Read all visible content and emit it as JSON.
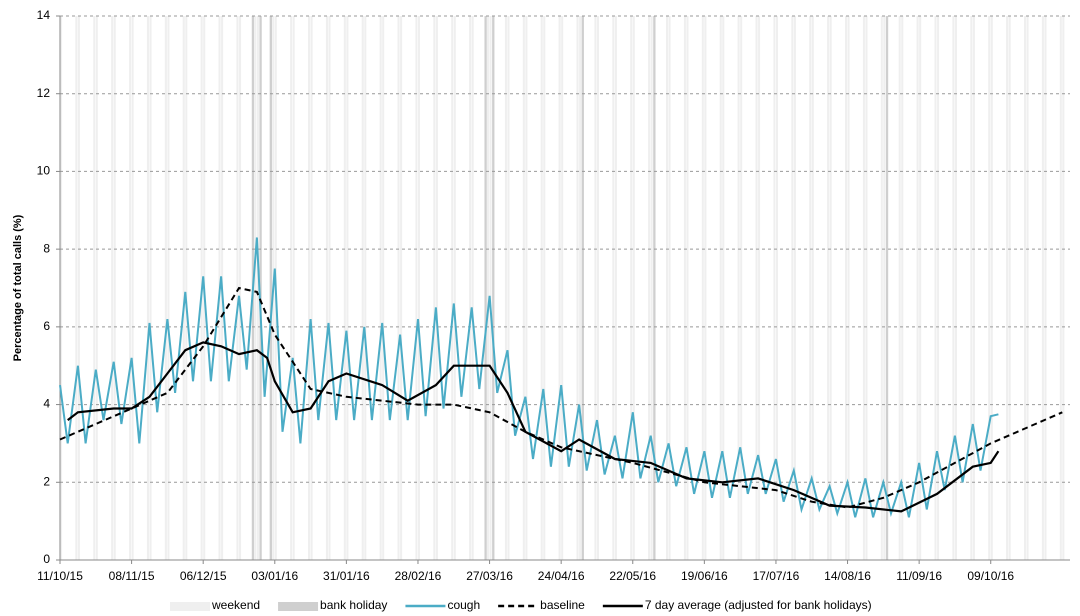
{
  "chart_data": {
    "type": "line",
    "ylabel": "Percentage of total calls (%)",
    "ylim": [
      0,
      14
    ],
    "yticks": [
      0,
      2,
      4,
      6,
      8,
      10,
      12,
      14
    ],
    "grid": true,
    "xlim": [
      "11/10/15",
      "09/11/16"
    ],
    "xticks": [
      "11/10/15",
      "08/11/15",
      "06/12/15",
      "03/01/16",
      "31/01/16",
      "28/02/16",
      "27/03/16",
      "24/04/16",
      "22/05/16",
      "19/06/16",
      "17/07/16",
      "14/08/16",
      "11/09/16",
      "09/10/16"
    ],
    "shading": [
      {
        "name": "weekend",
        "color": "#efefef"
      },
      {
        "name": "bank holiday",
        "color": "#cfcfcf",
        "dates": [
          "25/12/15",
          "28/12/15",
          "01/01/16",
          "25/03/16",
          "28/03/16",
          "02/05/16",
          "30/05/16",
          "29/08/16"
        ]
      }
    ],
    "series": [
      {
        "name": "cough",
        "color": "#4bacc6",
        "dash": false,
        "x": [
          "11/10/15",
          "14/10/15",
          "18/10/15",
          "21/10/15",
          "25/10/15",
          "28/10/15",
          "01/11/15",
          "04/11/15",
          "08/11/15",
          "11/11/15",
          "15/11/15",
          "18/11/15",
          "22/11/15",
          "25/11/15",
          "29/11/15",
          "02/12/15",
          "06/12/15",
          "09/12/15",
          "13/12/15",
          "16/12/15",
          "20/12/15",
          "23/12/15",
          "27/12/15",
          "30/12/15",
          "03/01/16",
          "06/01/16",
          "10/01/16",
          "13/01/16",
          "17/01/16",
          "20/01/16",
          "24/01/16",
          "27/01/16",
          "31/01/16",
          "03/02/16",
          "07/02/16",
          "10/02/16",
          "14/02/16",
          "17/02/16",
          "21/02/16",
          "24/02/16",
          "28/02/16",
          "02/03/16",
          "06/03/16",
          "09/03/16",
          "13/03/16",
          "16/03/16",
          "20/03/16",
          "23/03/16",
          "27/03/16",
          "30/03/16",
          "03/04/16",
          "06/04/16",
          "10/04/16",
          "13/04/16",
          "17/04/16",
          "20/04/16",
          "24/04/16",
          "27/04/16",
          "01/05/16",
          "04/05/16",
          "08/05/16",
          "11/05/16",
          "15/05/16",
          "18/05/16",
          "22/05/16",
          "25/05/16",
          "29/05/16",
          "01/06/16",
          "05/06/16",
          "08/06/16",
          "12/06/16",
          "15/06/16",
          "19/06/16",
          "22/06/16",
          "26/06/16",
          "29/06/16",
          "03/07/16",
          "06/07/16",
          "10/07/16",
          "13/07/16",
          "17/07/16",
          "20/07/16",
          "24/07/16",
          "27/07/16",
          "31/07/16",
          "03/08/16",
          "07/08/16",
          "10/08/16",
          "14/08/16",
          "17/08/16",
          "21/08/16",
          "24/08/16",
          "28/08/16",
          "31/08/16",
          "04/09/16",
          "07/09/16",
          "11/09/16",
          "14/09/16",
          "18/09/16",
          "21/09/16",
          "25/09/16",
          "28/09/16",
          "02/10/16",
          "05/10/16",
          "09/10/16",
          "12/10/16"
        ],
        "values": [
          4.5,
          3.0,
          5.0,
          3.0,
          4.9,
          3.6,
          5.1,
          3.5,
          5.2,
          3.0,
          6.1,
          3.8,
          6.2,
          4.3,
          6.9,
          4.6,
          7.3,
          4.6,
          7.3,
          4.6,
          6.8,
          4.9,
          8.3,
          4.2,
          7.5,
          3.3,
          5.2,
          3.0,
          6.2,
          3.6,
          6.1,
          3.6,
          5.9,
          3.6,
          6.0,
          3.6,
          6.1,
          3.6,
          5.8,
          3.6,
          6.2,
          3.7,
          6.5,
          3.9,
          6.6,
          4.2,
          6.5,
          4.4,
          6.8,
          4.3,
          5.4,
          3.2,
          4.2,
          2.6,
          4.4,
          2.4,
          4.5,
          2.4,
          4.0,
          2.3,
          3.6,
          2.2,
          3.2,
          2.1,
          3.8,
          2.1,
          3.2,
          2.0,
          3.0,
          1.9,
          2.9,
          1.7,
          2.8,
          1.6,
          2.8,
          1.6,
          2.9,
          1.7,
          2.7,
          1.7,
          2.6,
          1.5,
          2.3,
          1.3,
          2.1,
          1.3,
          1.9,
          1.2,
          2.0,
          1.1,
          2.1,
          1.1,
          2.0,
          1.2,
          2.0,
          1.1,
          2.5,
          1.3,
          2.8,
          1.8,
          3.2,
          2.0,
          3.5,
          2.3,
          3.7,
          3.75
        ]
      },
      {
        "name": "baseline",
        "color": "#000000",
        "dash": true,
        "x": [
          "11/10/15",
          "08/11/15",
          "22/11/15",
          "06/12/15",
          "20/12/15",
          "27/12/15",
          "03/01/16",
          "17/01/16",
          "31/01/16",
          "28/02/16",
          "13/03/16",
          "27/03/16",
          "10/04/16",
          "24/04/16",
          "22/05/16",
          "19/06/16",
          "17/07/16",
          "31/07/16",
          "14/08/16",
          "28/08/16",
          "11/09/16",
          "09/10/16",
          "06/11/16"
        ],
        "values": [
          3.1,
          3.9,
          4.3,
          5.5,
          7.0,
          6.9,
          5.8,
          4.4,
          4.2,
          4.0,
          4.0,
          3.8,
          3.3,
          2.9,
          2.5,
          2.0,
          1.8,
          1.5,
          1.35,
          1.6,
          2.0,
          3.0,
          3.8
        ]
      },
      {
        "name": "7 day average (adjusted for bank holidays)",
        "color": "#000000",
        "dash": false,
        "x": [
          "14/10/15",
          "18/10/15",
          "01/11/15",
          "08/11/15",
          "15/11/15",
          "22/11/15",
          "29/11/15",
          "06/12/15",
          "13/12/15",
          "20/12/15",
          "27/12/15",
          "31/12/15",
          "03/01/16",
          "10/01/16",
          "17/01/16",
          "24/01/16",
          "31/01/16",
          "14/02/16",
          "24/02/16",
          "06/03/16",
          "13/03/16",
          "20/03/16",
          "27/03/16",
          "03/04/16",
          "10/04/16",
          "24/04/16",
          "01/05/16",
          "15/05/16",
          "29/05/16",
          "12/06/16",
          "26/06/16",
          "10/07/16",
          "24/07/16",
          "07/08/16",
          "21/08/16",
          "04/09/16",
          "18/09/16",
          "02/10/16",
          "09/10/16",
          "12/10/16"
        ],
        "values": [
          3.6,
          3.8,
          3.9,
          3.9,
          4.2,
          4.8,
          5.4,
          5.6,
          5.5,
          5.3,
          5.4,
          5.2,
          4.6,
          3.8,
          3.9,
          4.6,
          4.8,
          4.5,
          4.1,
          4.5,
          5.0,
          5.0,
          5.0,
          4.3,
          3.3,
          2.8,
          3.1,
          2.6,
          2.5,
          2.1,
          2.0,
          2.1,
          1.8,
          1.4,
          1.35,
          1.25,
          1.7,
          2.4,
          2.5,
          2.8
        ]
      }
    ]
  }
}
